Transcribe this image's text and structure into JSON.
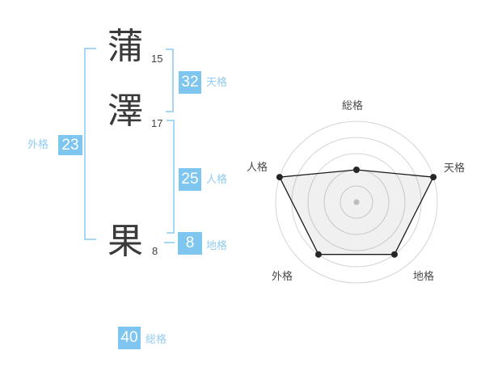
{
  "name_diagram": {
    "characters": [
      {
        "char": "蒲",
        "strokes": "15"
      },
      {
        "char": "澤",
        "strokes": "17"
      },
      {
        "char": "果",
        "strokes": "8"
      }
    ],
    "values": {
      "tenkaku": {
        "label": "天格",
        "value": "32"
      },
      "jinkaku": {
        "label": "人格",
        "value": "25"
      },
      "chikaku": {
        "label": "地格",
        "value": "8"
      },
      "gaikaku": {
        "label": "外格",
        "value": "23"
      },
      "soukaku": {
        "label": "総格",
        "value": "40"
      }
    }
  },
  "colors": {
    "accent_blue": "#7ec5ef",
    "label_blue": "#92ccf1",
    "bracket_blue": "#a5d8f5",
    "ink": "#3a3a3a",
    "chart_grid": "#d4d4d4",
    "chart_line": "#1a1a1a",
    "chart_fill": "rgba(0,0,0,0.06)",
    "chart_center_dot": "#bdbdbd"
  },
  "chart_data": {
    "type": "radar",
    "categories": [
      "総格",
      "天格",
      "地格",
      "外格",
      "人格"
    ],
    "values": [
      2,
      5,
      4,
      4,
      5
    ],
    "max": 5,
    "rings": 5,
    "angles_deg": [
      90,
      18,
      -54,
      -126,
      162
    ],
    "grid": "concentric-circles",
    "center_dot": true,
    "legend": "none",
    "title": ""
  }
}
